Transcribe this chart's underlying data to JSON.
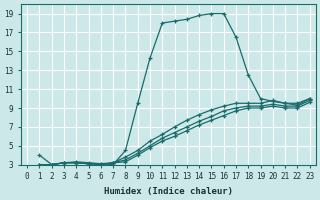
{
  "xlabel": "Humidex (Indice chaleur)",
  "bg_color": "#cce8e8",
  "grid_color": "#ffffff",
  "line_color": "#1a6b6b",
  "xlim": [
    -0.5,
    23.5
  ],
  "ylim": [
    3,
    20
  ],
  "xticks": [
    0,
    1,
    2,
    3,
    4,
    5,
    6,
    7,
    8,
    9,
    10,
    11,
    12,
    13,
    14,
    15,
    16,
    17,
    18,
    19,
    20,
    21,
    22,
    23
  ],
  "yticks": [
    3,
    5,
    7,
    9,
    11,
    13,
    15,
    17,
    19
  ],
  "series": [
    {
      "x": [
        1,
        2,
        3,
        4,
        5,
        6,
        7,
        8,
        9,
        10,
        11,
        12,
        13,
        14,
        15,
        16,
        17,
        18,
        19,
        20,
        21,
        22,
        23
      ],
      "y": [
        4,
        3,
        3.2,
        3.3,
        3.2,
        3.1,
        3.0,
        4.5,
        9.5,
        14.3,
        18.0,
        18.2,
        18.4,
        18.8,
        19.0,
        19.0,
        16.5,
        12.5,
        10.0,
        9.7,
        9.5,
        9.5,
        10.0
      ]
    },
    {
      "x": [
        1,
        2,
        3,
        4,
        5,
        6,
        7,
        8,
        9,
        10,
        11,
        12,
        13,
        14,
        15,
        16,
        17,
        18,
        19,
        20,
        21,
        22,
        23
      ],
      "y": [
        3,
        3,
        3.2,
        3.2,
        3.1,
        3.1,
        3.2,
        3.8,
        4.5,
        5.5,
        6.2,
        7.0,
        7.7,
        8.3,
        8.8,
        9.2,
        9.5,
        9.5,
        9.5,
        9.8,
        9.5,
        9.3,
        10.0
      ]
    },
    {
      "x": [
        1,
        2,
        3,
        4,
        5,
        6,
        7,
        8,
        9,
        10,
        11,
        12,
        13,
        14,
        15,
        16,
        17,
        18,
        19,
        20,
        21,
        22,
        23
      ],
      "y": [
        3,
        3,
        3.2,
        3.2,
        3.1,
        3.0,
        3.2,
        3.5,
        4.2,
        5.0,
        5.8,
        6.4,
        7.0,
        7.6,
        8.1,
        8.7,
        9.0,
        9.2,
        9.2,
        9.4,
        9.2,
        9.2,
        9.8
      ]
    },
    {
      "x": [
        1,
        2,
        3,
        4,
        5,
        6,
        7,
        8,
        9,
        10,
        11,
        12,
        13,
        14,
        15,
        16,
        17,
        18,
        19,
        20,
        21,
        22,
        23
      ],
      "y": [
        3,
        3,
        3.2,
        3.2,
        3.1,
        3.0,
        3.2,
        3.3,
        4.0,
        4.8,
        5.5,
        6.0,
        6.6,
        7.2,
        7.7,
        8.2,
        8.7,
        9.0,
        9.0,
        9.2,
        9.0,
        9.0,
        9.6
      ]
    }
  ]
}
